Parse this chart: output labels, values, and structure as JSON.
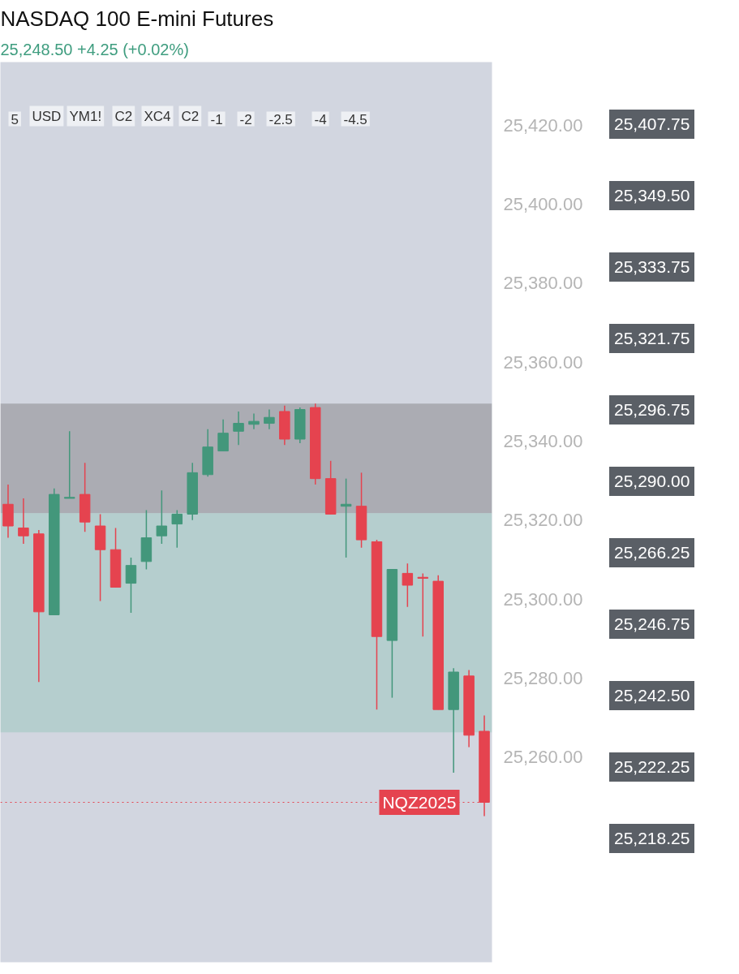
{
  "chart_data": {
    "type": "candlestick",
    "title": "NASDAQ 100 E-mini Futures",
    "subtitle": "25,248.50 +4.25 (+0.02%)",
    "categories": [
      null,
      null,
      null,
      null,
      null,
      null,
      null,
      null,
      null,
      null,
      null,
      null,
      null,
      null,
      null,
      null,
      null,
      null,
      null,
      null,
      null,
      null,
      null,
      null,
      null,
      null,
      null,
      null,
      null,
      null,
      null,
      null
    ],
    "ohlc": [
      [
        25324,
        25329,
        25315.5,
        25318.5
      ],
      [
        25318,
        25325.5,
        25314,
        25316
      ],
      [
        25316.5,
        25317.5,
        25279,
        25296.75
      ],
      [
        25296,
        25328,
        25296,
        25326.5
      ],
      [
        25325.5,
        25342.5,
        25325.5,
        25325.75
      ],
      [
        25326.5,
        25334.5,
        25317,
        25319.5
      ],
      [
        25318.5,
        25321.5,
        25299.5,
        25312.5
      ],
      [
        25312.5,
        25318,
        25303,
        25303
      ],
      [
        25304,
        25310.5,
        25296.5,
        25308.5
      ],
      [
        25309.5,
        25322.5,
        25307.5,
        25315.5
      ],
      [
        25316,
        25327.5,
        25314,
        25318.5
      ],
      [
        25319,
        25322.5,
        25313,
        25321.5
      ],
      [
        25321.5,
        25334.5,
        25320,
        25332
      ],
      [
        25331.5,
        25343,
        25331,
        25338.5
      ],
      [
        25337.5,
        25345.5,
        25337.5,
        25342
      ],
      [
        25342.5,
        25347.5,
        25339,
        25344.5
      ],
      [
        25344.25,
        25347,
        25343,
        25345
      ],
      [
        25344.5,
        25348,
        25343,
        25346
      ],
      [
        25347.5,
        25349,
        25339,
        25340.5
      ],
      [
        25340.5,
        25348.5,
        25339.5,
        25348
      ],
      [
        25348.5,
        25349.5,
        25329,
        25330.5
      ],
      [
        25330.5,
        25335,
        25321.5,
        25321.5
      ],
      [
        25323.5,
        25330.5,
        25310.5,
        25324
      ],
      [
        25323.5,
        25332,
        25313,
        25315
      ],
      [
        25314.5,
        25315,
        25272,
        25290.5
      ],
      [
        25289.5,
        25307.5,
        25275,
        25307.5
      ],
      [
        25306.5,
        25309,
        25298,
        25303.5
      ],
      [
        25305.5,
        25306.5,
        25290.5,
        25305.25
      ],
      [
        25304.5,
        25306,
        25272,
        25272
      ],
      [
        25272,
        25282.5,
        25256,
        25281.5
      ],
      [
        25280.5,
        25282,
        25262.5,
        25265.5
      ],
      [
        25266.5,
        25270.5,
        25245,
        25248.5
      ]
    ],
    "colors": [
      "#e5434f",
      "#e5434f",
      "#e5434f",
      "#43977b",
      "#43977b",
      "#e5434f",
      "#e5434f",
      "#e5434f",
      "#43977b",
      "#43977b",
      "#43977b",
      "#43977b",
      "#43977b",
      "#43977b",
      "#43977b",
      "#43977b",
      "#43977b",
      "#43977b",
      "#e5434f",
      "#43977b",
      "#e5434f",
      "#e5434f",
      "#43977b",
      "#e5434f",
      "#e5434f",
      "#43977b",
      "#e5434f",
      "#e5434f",
      "#e5434f",
      "#43977b",
      "#e5434f",
      "#e5434f"
    ],
    "ylim": [
      25208,
      25436
    ],
    "yticks": [
      {
        "value": 25260,
        "label": "25,260.00"
      },
      {
        "value": 25280,
        "label": "25,280.00"
      },
      {
        "value": 25300,
        "label": "25,300.00"
      },
      {
        "value": 25320,
        "label": "25,320.00"
      },
      {
        "value": 25340,
        "label": "25,340.00"
      },
      {
        "value": 25360,
        "label": "25,360.00"
      },
      {
        "value": 25380,
        "label": "25,380.00"
      },
      {
        "value": 25400,
        "label": "25,400.00"
      },
      {
        "value": 25420,
        "label": "25,420.00"
      }
    ],
    "tick_labels": "y",
    "grid": false,
    "bands": [
      {
        "axis": "y",
        "from": 25321.75,
        "to": 25349.5,
        "color": "#8a8a8e"
      },
      {
        "axis": "y",
        "from": 25266.25,
        "to": 25321.75,
        "color": "#9cc9c0"
      }
    ],
    "ref_lines": [
      {
        "axis": "y",
        "value": 25248.5,
        "label": "NQZ2025",
        "color": "#e5434f",
        "line_style": "dotted"
      }
    ],
    "annotations": [
      "25,407.75",
      "25,349.50",
      "25,333.75",
      "25,321.75",
      "25,296.75",
      "25,290.00",
      "25,266.25",
      "25,246.75",
      "25,242.50",
      "25,222.25",
      "25,218.25",
      "5",
      "USD",
      "YM1!",
      "C2",
      "XC4",
      "C2",
      "-1",
      "-2",
      "-2.5",
      "-4",
      "-4.5"
    ]
  }
}
